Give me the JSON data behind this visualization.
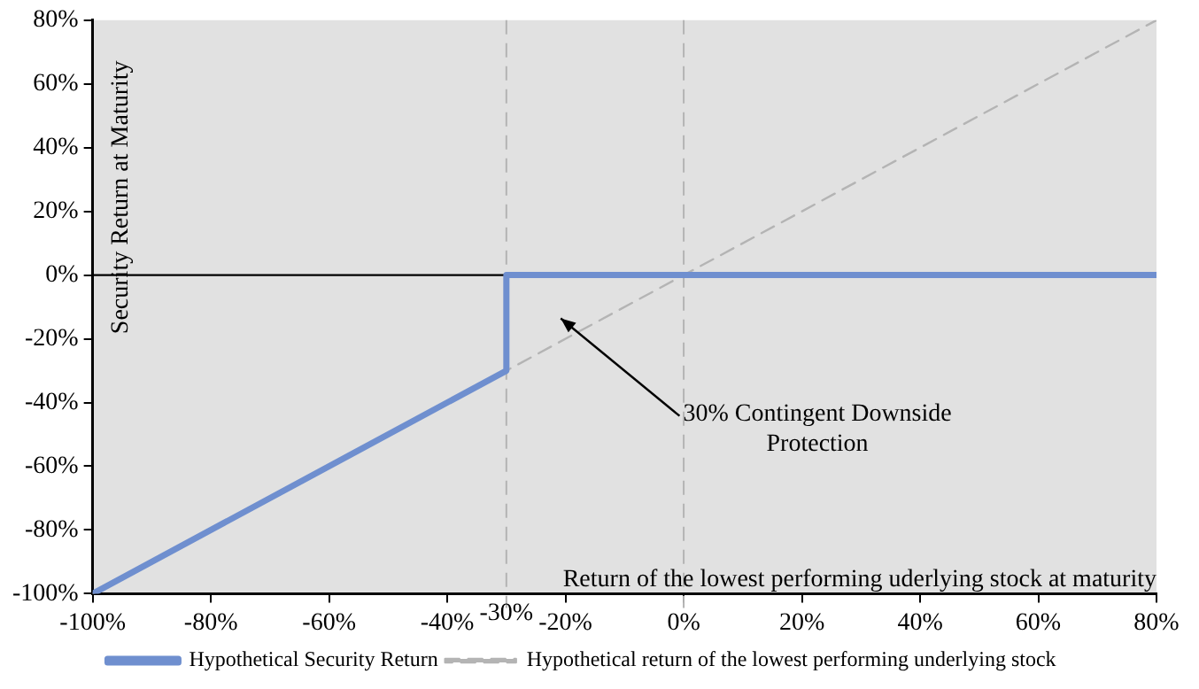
{
  "chart_data": {
    "type": "line",
    "xlabel": "Return of the lowest performing uderlying stock at maturity",
    "ylabel": "Security Return at Maturity",
    "series": [
      {
        "name": "Hypothetical Security Return",
        "color": "#6f8fcf",
        "x": [
          -100,
          -30,
          -30,
          80
        ],
        "values": [
          -100,
          -30,
          0,
          0
        ],
        "line_style": "solid"
      },
      {
        "name": "Hypothetical return of the lowest performing underlying stock",
        "color": "#b4b4b4",
        "x": [
          -100,
          80
        ],
        "values": [
          -100,
          80
        ],
        "line_style": "dashed"
      }
    ],
    "xlim": [
      -100,
      80
    ],
    "xticks": [
      {
        "value": -100,
        "label": "-100%"
      },
      {
        "value": -80,
        "label": "-80%"
      },
      {
        "value": -60,
        "label": "-60%"
      },
      {
        "value": -40,
        "label": "-40%"
      },
      {
        "value": -20,
        "label": "-20%"
      },
      {
        "value": 0,
        "label": "0%"
      },
      {
        "value": 20,
        "label": "20%"
      },
      {
        "value": 40,
        "label": "40%"
      },
      {
        "value": 60,
        "label": "60%"
      },
      {
        "value": 80,
        "label": "80%"
      }
    ],
    "ylim": [
      -100,
      80
    ],
    "yticks": [
      {
        "value": -100,
        "label": "-100%"
      },
      {
        "value": -80,
        "label": "-80%"
      },
      {
        "value": -60,
        "label": "-60%"
      },
      {
        "value": -40,
        "label": "-40%"
      },
      {
        "value": -20,
        "label": "-20%"
      },
      {
        "value": 0,
        "label": "0%"
      },
      {
        "value": 20,
        "label": "20%"
      },
      {
        "value": 40,
        "label": "40%"
      },
      {
        "value": 60,
        "label": "60%"
      },
      {
        "value": 80,
        "label": "80%"
      }
    ],
    "ref_lines": [
      {
        "axis": "x",
        "value": -30,
        "label": "-30%",
        "color": "#b4b4b4",
        "line_style": "dashed"
      },
      {
        "axis": "x",
        "value": 0,
        "color": "#b4b4b4",
        "line_style": "dashed"
      },
      {
        "axis": "y",
        "value": 0,
        "color": "#000000",
        "line_style": "solid"
      }
    ],
    "annotations": [
      "30% Contingent Downside Protection"
    ],
    "grid": false,
    "legend": "bottom",
    "marker": "none"
  }
}
